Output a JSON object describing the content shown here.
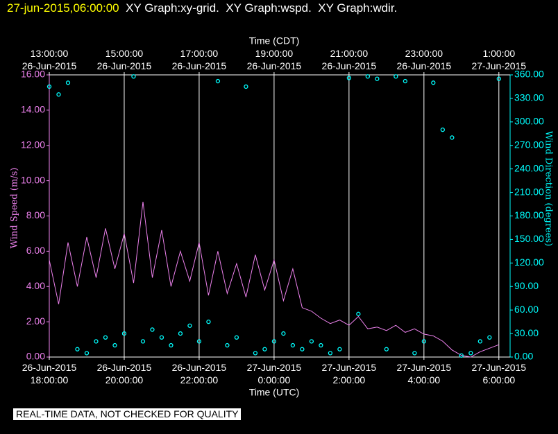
{
  "header": {
    "timestamp": "27-jun-2015,06:00:00"
  },
  "footer": {
    "note": "REAL-TIME DATA, NOT CHECKED FOR QUALITY"
  },
  "chart_data": {
    "type": "line",
    "title": "XY Graph:xy-grid.  XY Graph:wspd.  XY Graph:wdir.",
    "xlabel": "Time (UTC)",
    "x2label": "Time (CDT)",
    "ylabel": "Wind Speed (m/s)",
    "y2label": "Wind Direction (degrees)",
    "grid": true,
    "xlim": [
      "2015-06-26 18:00:00",
      "2015-06-27 06:18:00"
    ],
    "xticks": [
      {
        "value": "2015-06-26 18:00:00",
        "label": "26-Jun-2015\n18:00:00"
      },
      {
        "value": "2015-06-26 20:00:00",
        "label": "26-Jun-2015\n20:00:00"
      },
      {
        "value": "2015-06-26 22:00:00",
        "label": "26-Jun-2015\n22:00:00"
      },
      {
        "value": "2015-06-27 00:00:00",
        "label": "27-Jun-2015\n0:00:00"
      },
      {
        "value": "2015-06-27 02:00:00",
        "label": "27-Jun-2015\n2:00:00"
      },
      {
        "value": "2015-06-27 04:00:00",
        "label": "27-Jun-2015\n4:00:00"
      },
      {
        "value": "2015-06-27 06:00:00",
        "label": "27-Jun-2015\n6:00:00"
      }
    ],
    "x2ticks": [
      {
        "value": "2015-06-26 18:00:00",
        "label": "13:00:00\n26-Jun-2015"
      },
      {
        "value": "2015-06-26 20:00:00",
        "label": "15:00:00\n26-Jun-2015"
      },
      {
        "value": "2015-06-26 22:00:00",
        "label": "17:00:00\n26-Jun-2015"
      },
      {
        "value": "2015-06-27 00:00:00",
        "label": "19:00:00\n26-Jun-2015"
      },
      {
        "value": "2015-06-27 02:00:00",
        "label": "21:00:00\n26-Jun-2015"
      },
      {
        "value": "2015-06-27 04:00:00",
        "label": "23:00:00\n26-Jun-2015"
      },
      {
        "value": "2015-06-27 06:00:00",
        "label": "1:00:00\n27-Jun-2015"
      }
    ],
    "ylim": [
      0,
      16
    ],
    "yticks": [
      {
        "value": 0,
        "label": "0.00"
      },
      {
        "value": 2,
        "label": "2.00"
      },
      {
        "value": 4,
        "label": "4.00"
      },
      {
        "value": 6,
        "label": "6.00"
      },
      {
        "value": 8,
        "label": "8.00"
      },
      {
        "value": 10,
        "label": "10.00"
      },
      {
        "value": 12,
        "label": "12.00"
      },
      {
        "value": 14,
        "label": "14.00"
      },
      {
        "value": 16,
        "label": "16.00"
      }
    ],
    "y2lim": [
      0,
      360
    ],
    "y2ticks": [
      {
        "value": 0,
        "label": "0.00"
      },
      {
        "value": 30,
        "label": "30.00"
      },
      {
        "value": 60,
        "label": "60.00"
      },
      {
        "value": 90,
        "label": "90.00"
      },
      {
        "value": 120,
        "label": "120.00"
      },
      {
        "value": 150,
        "label": "150.00"
      },
      {
        "value": 180,
        "label": "180.00"
      },
      {
        "value": 210,
        "label": "210.00"
      },
      {
        "value": 240,
        "label": "240.00"
      },
      {
        "value": 270,
        "label": "270.00"
      },
      {
        "value": 300,
        "label": "300.00"
      },
      {
        "value": 330,
        "label": "330.00"
      },
      {
        "value": 360,
        "label": "360.00"
      }
    ],
    "ycolor": "#ee82ee",
    "y2color": "#00ffff",
    "x": [
      "2015-06-26 18:00:00",
      "2015-06-26 18:15:00",
      "2015-06-26 18:30:00",
      "2015-06-26 18:45:00",
      "2015-06-26 19:00:00",
      "2015-06-26 19:15:00",
      "2015-06-26 19:30:00",
      "2015-06-26 19:45:00",
      "2015-06-26 20:00:00",
      "2015-06-26 20:15:00",
      "2015-06-26 20:30:00",
      "2015-06-26 20:45:00",
      "2015-06-26 21:00:00",
      "2015-06-26 21:15:00",
      "2015-06-26 21:30:00",
      "2015-06-26 21:45:00",
      "2015-06-26 22:00:00",
      "2015-06-26 22:15:00",
      "2015-06-26 22:30:00",
      "2015-06-26 22:45:00",
      "2015-06-26 23:00:00",
      "2015-06-26 23:15:00",
      "2015-06-26 23:30:00",
      "2015-06-26 23:45:00",
      "2015-06-27 00:00:00",
      "2015-06-27 00:15:00",
      "2015-06-27 00:30:00",
      "2015-06-27 00:45:00",
      "2015-06-27 01:00:00",
      "2015-06-27 01:15:00",
      "2015-06-27 01:30:00",
      "2015-06-27 01:45:00",
      "2015-06-27 02:00:00",
      "2015-06-27 02:15:00",
      "2015-06-27 02:30:00",
      "2015-06-27 02:45:00",
      "2015-06-27 03:00:00",
      "2015-06-27 03:15:00",
      "2015-06-27 03:30:00",
      "2015-06-27 03:45:00",
      "2015-06-27 04:00:00",
      "2015-06-27 04:15:00",
      "2015-06-27 04:30:00",
      "2015-06-27 04:45:00",
      "2015-06-27 05:00:00",
      "2015-06-27 05:15:00",
      "2015-06-27 05:30:00",
      "2015-06-27 05:45:00",
      "2015-06-27 06:00:00"
    ],
    "series": [
      {
        "color": "#ee82ee",
        "marker": "none",
        "values": [
          5.5,
          3.0,
          6.5,
          4.0,
          6.8,
          4.5,
          7.3,
          5.0,
          7.0,
          4.2,
          8.8,
          4.5,
          7.2,
          4.0,
          6.0,
          4.3,
          6.5,
          3.5,
          6.0,
          3.6,
          5.3,
          3.4,
          5.8,
          3.8,
          5.5,
          3.2,
          5.0,
          2.8,
          2.6,
          2.2,
          1.9,
          2.1,
          1.8,
          2.3,
          1.6,
          1.7,
          1.5,
          1.8,
          1.4,
          1.6,
          1.3,
          1.2,
          0.9,
          0.4,
          0.1,
          0.0,
          0.3,
          0.5,
          0.7
        ]
      },
      {
        "color": "#00ffff",
        "marker": "circle",
        "axis": "y2",
        "values": [
          345,
          335,
          350,
          10,
          5,
          20,
          25,
          15,
          30,
          358,
          20,
          35,
          25,
          15,
          30,
          40,
          20,
          45,
          352,
          15,
          25,
          345,
          5,
          10,
          20,
          30,
          15,
          10,
          20,
          15,
          5,
          10,
          356,
          55,
          358,
          355,
          10,
          358,
          352,
          5,
          20,
          350,
          290,
          280,
          2,
          5,
          20,
          25,
          355
        ]
      }
    ]
  }
}
